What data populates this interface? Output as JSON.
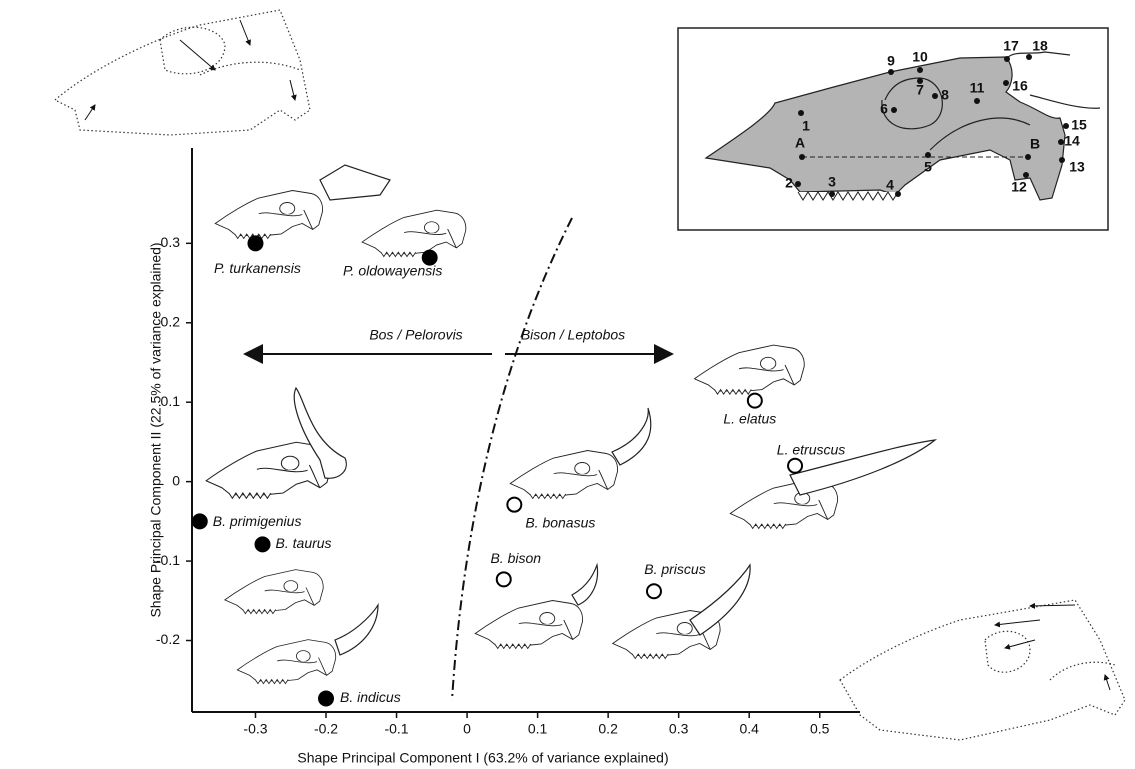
{
  "chart_data": {
    "type": "scatter",
    "xlabel": "Shape Principal Component I (63.2% of variance explained)",
    "ylabel": "Shape Principal Component II (22.5% of variance explained)",
    "xlim": [
      -0.39,
      0.55
    ],
    "ylim": [
      -0.29,
      0.42
    ],
    "xticks": [
      -0.3,
      -0.2,
      -0.1,
      0,
      0.1,
      0.2,
      0.3,
      0.4,
      0.5
    ],
    "yticks": [
      -0.2,
      -0.1,
      0,
      0.1,
      0.2,
      0.3
    ],
    "annotations": [
      "Bos / Pelorovis",
      "Bison / Leptobos"
    ],
    "points": [
      {
        "label": "P. turkanensis",
        "x": -0.3,
        "y": 0.3,
        "filled": true
      },
      {
        "label": "P. oldowayensis",
        "x": -0.053,
        "y": 0.282,
        "filled": true
      },
      {
        "label": "L. elatus",
        "x": 0.408,
        "y": 0.102,
        "filled": false
      },
      {
        "label": "L. etruscus",
        "x": 0.465,
        "y": 0.02,
        "filled": false
      },
      {
        "label": "B. bonasus",
        "x": 0.067,
        "y": -0.029,
        "filled": false
      },
      {
        "label": "B. primigenius",
        "x": -0.379,
        "y": -0.05,
        "filled": true
      },
      {
        "label": "B. taurus",
        "x": -0.29,
        "y": -0.079,
        "filled": true
      },
      {
        "label": "B. bison",
        "x": 0.052,
        "y": -0.123,
        "filled": false
      },
      {
        "label": "B. priscus",
        "x": 0.265,
        "y": -0.138,
        "filled": false
      },
      {
        "label": "B. indicus",
        "x": -0.2,
        "y": -0.273,
        "filled": true
      }
    ]
  },
  "inset": {
    "landmarks": [
      "1",
      "2",
      "3",
      "4",
      "5",
      "6",
      "7",
      "8",
      "9",
      "10",
      "11",
      "12",
      "13",
      "14",
      "15",
      "16",
      "17",
      "18",
      "A",
      "B"
    ]
  }
}
